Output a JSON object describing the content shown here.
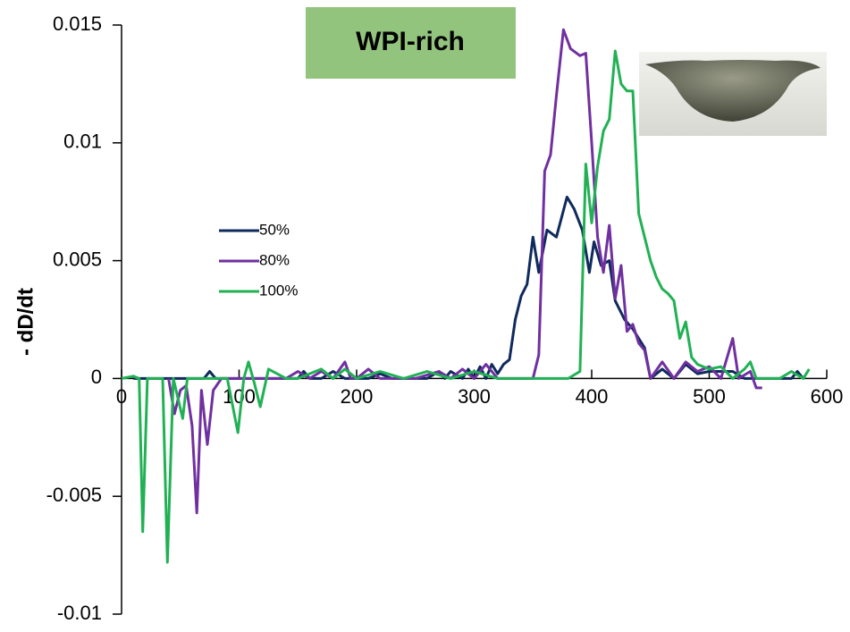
{
  "chart_data": {
    "type": "line",
    "title": "WPI-rich",
    "ylabel": "- dD/dt",
    "xlim": [
      0,
      600
    ],
    "xticks": [
      0,
      100,
      200,
      300,
      400,
      500,
      600
    ],
    "ylim": [
      -0.01,
      0.015
    ],
    "yticks": [
      -0.01,
      -0.005,
      0,
      0.005,
      0.01,
      0.015
    ],
    "series": [
      {
        "name": "50%",
        "color": "#0f2a5c",
        "x": [
          10,
          30,
          50,
          65,
          70,
          75,
          80,
          100,
          110,
          120,
          150,
          155,
          160,
          170,
          180,
          190,
          200,
          210,
          220,
          230,
          240,
          260,
          270,
          275,
          280,
          290,
          295,
          300,
          305,
          310,
          315,
          320,
          325,
          330,
          335,
          340,
          345,
          350,
          355,
          362,
          370,
          379,
          385,
          392,
          398,
          402,
          408,
          415,
          420,
          428,
          435,
          440,
          445,
          450,
          460,
          470,
          480,
          490,
          500,
          510,
          520,
          530,
          540,
          550,
          560,
          570,
          575,
          580
        ],
        "values": [
          0,
          0,
          0,
          0,
          0,
          0.0003,
          0,
          0,
          0,
          0,
          0,
          0.0003,
          0,
          0,
          0.0003,
          0,
          0,
          0,
          0.0002,
          0,
          0,
          0,
          0.0003,
          0,
          0.0003,
          0,
          0.0004,
          0,
          0.0005,
          0,
          0.0006,
          0.0002,
          0.0006,
          0.0008,
          0.0025,
          0.0035,
          0.004,
          0.006,
          0.0045,
          0.0063,
          0.006,
          0.0077,
          0.0072,
          0.0063,
          0.0045,
          0.0058,
          0.0048,
          0.005,
          0.0033,
          0.0025,
          0.0021,
          0.0017,
          0.0013,
          0,
          0.0004,
          0,
          0.0006,
          0.0002,
          0.0003,
          0.0003,
          0.0003,
          0,
          0,
          0,
          0,
          0,
          0.0003,
          0
        ]
      },
      {
        "name": "80%",
        "color": "#7030a0",
        "x": [
          40,
          45,
          50,
          55,
          60,
          64,
          68,
          73,
          78,
          85,
          100,
          120,
          140,
          150,
          160,
          170,
          180,
          190,
          195,
          200,
          210,
          220,
          230,
          250,
          270,
          280,
          290,
          300,
          310,
          320,
          330,
          340,
          350,
          355,
          360,
          365,
          370,
          376,
          382,
          390,
          395,
          400,
          405,
          410,
          415,
          420,
          425,
          430,
          435,
          440,
          445,
          450,
          460,
          470,
          480,
          490,
          500,
          510,
          520,
          525,
          535,
          540,
          545
        ],
        "values": [
          0,
          -0.0015,
          -0.0005,
          -0.0003,
          -0.002,
          -0.0057,
          -0.0005,
          -0.0028,
          -0.0005,
          0,
          0,
          0,
          0,
          0.0003,
          0,
          0.0003,
          0,
          0.0007,
          0,
          0,
          0.0004,
          0,
          0,
          0,
          0.0003,
          0,
          0.0004,
          0,
          0.0006,
          0,
          0,
          0,
          0,
          0.001,
          0.0088,
          0.0095,
          0.012,
          0.0148,
          0.014,
          0.0137,
          0.0138,
          0.01,
          0.006,
          0.0045,
          0.0065,
          0.0034,
          0.0048,
          0.002,
          0.0023,
          0.0015,
          0.0012,
          0,
          0.0007,
          0,
          0.0007,
          0.0003,
          0.0005,
          0,
          0.0017,
          0,
          0.0003,
          -0.0004,
          -0.0004
        ]
      },
      {
        "name": "100%",
        "color": "#21b154",
        "x": [
          0,
          10,
          15,
          18,
          22,
          30,
          35,
          39,
          44,
          52,
          56,
          80,
          90,
          99,
          104,
          108,
          113,
          118,
          125,
          140,
          150,
          170,
          180,
          190,
          200,
          220,
          240,
          260,
          280,
          300,
          320,
          340,
          360,
          380,
          390,
          395,
          400,
          405,
          410,
          415,
          420,
          425,
          430,
          435,
          440,
          445,
          450,
          455,
          460,
          465,
          470,
          475,
          480,
          485,
          490,
          500,
          510,
          520,
          530,
          535,
          540,
          560,
          570,
          580,
          585
        ],
        "values": [
          0,
          0.0001,
          0,
          -0.0065,
          0,
          0,
          0,
          -0.0078,
          0,
          -0.0017,
          0,
          0,
          0,
          -0.0023,
          0,
          0.0007,
          -0.0002,
          -0.0012,
          0.0004,
          0,
          0,
          0.0004,
          0,
          0.0004,
          0,
          0.0003,
          0,
          0.0003,
          0,
          0.0003,
          0,
          0,
          0,
          0,
          0.0003,
          0.0091,
          0.0066,
          0.009,
          0.0105,
          0.011,
          0.0139,
          0.0125,
          0.0122,
          0.0122,
          0.007,
          0.006,
          0.005,
          0.0043,
          0.0038,
          0.0036,
          0.0033,
          0.0017,
          0.0024,
          0.0009,
          0.0006,
          0.0004,
          0.0005,
          0,
          0.0004,
          0.0007,
          0,
          0,
          0.0003,
          0,
          0.0004
        ]
      }
    ]
  }
}
